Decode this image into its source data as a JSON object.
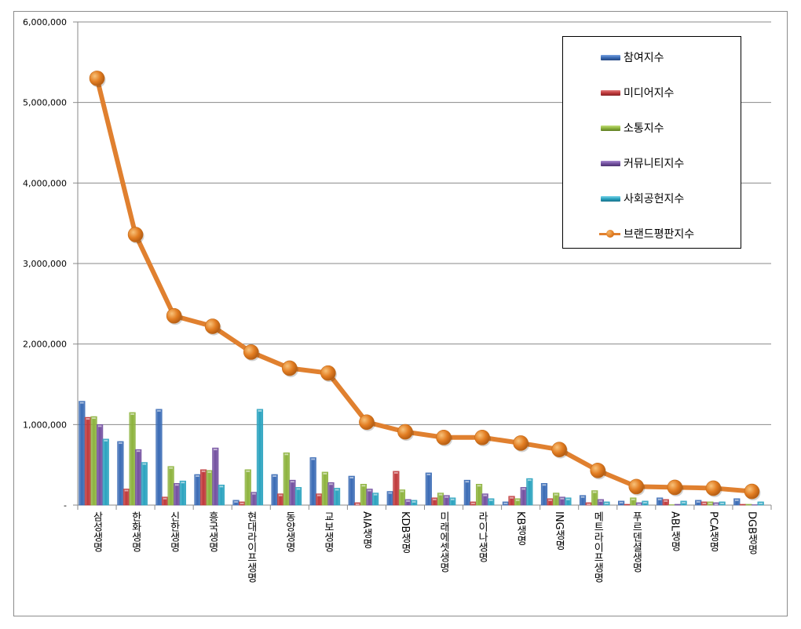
{
  "chart_data": {
    "type": "bar+line",
    "title": "",
    "xlabel": "",
    "ylabel": "",
    "ylim": [
      0,
      6000000
    ],
    "yticks": [
      0,
      1000000,
      2000000,
      3000000,
      4000000,
      5000000,
      6000000
    ],
    "ytick_labels": [
      "-",
      "1,000,000",
      "2,000,000",
      "3,000,000",
      "4,000,000",
      "5,000,000",
      "6,000,000"
    ],
    "grid": true,
    "legend_position": "upper right (inside plot)",
    "categories": [
      "삼성생명",
      "한화생명",
      "신한생명",
      "흥국생명",
      "현대라이프생명",
      "동양생명",
      "교보생명",
      "AIA생명",
      "KDB생명",
      "미래에셋생명",
      "라이나생명",
      "KB생명",
      "ING생명",
      "메트라이프생명",
      "푸르덴셜생명",
      "ABL생명",
      "PCA생명",
      "DGB생명"
    ],
    "series": [
      {
        "name": "참여지수",
        "type": "bar",
        "color": "#3a6bb5",
        "values": [
          1290000,
          790000,
          1190000,
          380000,
          60000,
          380000,
          590000,
          360000,
          170000,
          400000,
          310000,
          40000,
          270000,
          120000,
          50000,
          90000,
          60000,
          80000
        ]
      },
      {
        "name": "미디어지수",
        "type": "bar",
        "color": "#c0393b",
        "values": [
          1090000,
          200000,
          100000,
          440000,
          40000,
          140000,
          140000,
          30000,
          420000,
          90000,
          40000,
          110000,
          80000,
          30000,
          10000,
          70000,
          40000,
          10000
        ]
      },
      {
        "name": "소통지수",
        "type": "bar",
        "color": "#8db33d",
        "values": [
          1100000,
          1150000,
          480000,
          430000,
          440000,
          650000,
          410000,
          260000,
          190000,
          150000,
          260000,
          80000,
          150000,
          180000,
          90000,
          5000,
          40000,
          10000
        ]
      },
      {
        "name": "커뮤니티지수",
        "type": "bar",
        "color": "#7350a0",
        "values": [
          1000000,
          690000,
          270000,
          710000,
          160000,
          310000,
          280000,
          200000,
          70000,
          120000,
          140000,
          220000,
          100000,
          70000,
          30000,
          10000,
          30000,
          5000
        ]
      },
      {
        "name": "사회공헌지수",
        "type": "bar",
        "color": "#2aa3bf",
        "values": [
          820000,
          530000,
          300000,
          250000,
          1190000,
          220000,
          210000,
          150000,
          60000,
          90000,
          80000,
          330000,
          90000,
          40000,
          50000,
          50000,
          40000,
          40000
        ]
      },
      {
        "name": "브랜드평판지수",
        "type": "line",
        "color": "#e0802f",
        "values": [
          5300000,
          3360000,
          2350000,
          2220000,
          1900000,
          1700000,
          1640000,
          1030000,
          910000,
          840000,
          840000,
          770000,
          690000,
          430000,
          230000,
          220000,
          210000,
          170000
        ]
      }
    ]
  },
  "legend": {
    "items": [
      {
        "label": "참여지수",
        "kind": "bar",
        "color": "#3a6bb5"
      },
      {
        "label": "미디어지수",
        "kind": "bar",
        "color": "#c0393b"
      },
      {
        "label": "소통지수",
        "kind": "bar",
        "color": "#8db33d"
      },
      {
        "label": "커뮤니티지수",
        "kind": "bar",
        "color": "#7350a0"
      },
      {
        "label": "사회공헌지수",
        "kind": "bar",
        "color": "#2aa3bf"
      },
      {
        "label": "브랜드평판지수",
        "kind": "line",
        "color": "#e0802f"
      }
    ]
  }
}
